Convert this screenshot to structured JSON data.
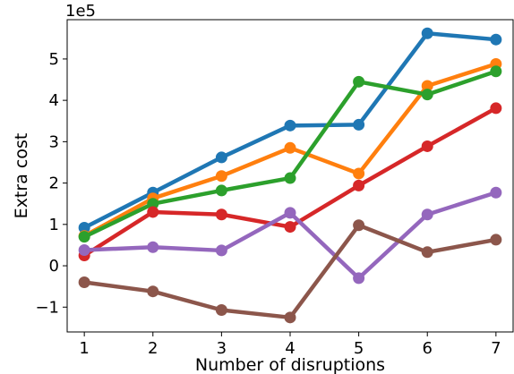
{
  "chart_data": {
    "type": "line",
    "title": "",
    "xlabel": "Number of disruptions",
    "ylabel": "Extra cost",
    "y_offset_label": "1e5",
    "x": [
      1,
      2,
      3,
      4,
      5,
      6,
      7
    ],
    "xticks": [
      "1",
      "2",
      "3",
      "4",
      "5",
      "6",
      "7"
    ],
    "yticks": [
      "−1",
      "0",
      "1",
      "2",
      "3",
      "4",
      "5"
    ],
    "xlim": [
      0.75,
      7.25
    ],
    "ylim": [
      -1.6,
      5.95
    ],
    "grid": false,
    "legend": "none",
    "series": [
      {
        "color": "#1f77b4",
        "values": [
          0.92,
          1.77,
          2.62,
          3.39,
          3.41,
          5.62,
          5.47
        ]
      },
      {
        "color": "#ff7f0e",
        "values": [
          0.72,
          1.63,
          2.17,
          2.85,
          2.23,
          4.35,
          4.88
        ]
      },
      {
        "color": "#2ca02c",
        "values": [
          0.7,
          1.5,
          1.82,
          2.12,
          4.45,
          4.14,
          4.7
        ]
      },
      {
        "color": "#d62728",
        "values": [
          0.25,
          1.3,
          1.24,
          0.94,
          1.94,
          2.89,
          3.81
        ]
      },
      {
        "color": "#9467bd",
        "values": [
          0.38,
          0.45,
          0.37,
          1.28,
          -0.3,
          1.24,
          1.77
        ]
      },
      {
        "color": "#8c564b",
        "values": [
          -0.4,
          -0.62,
          -1.07,
          -1.25,
          0.98,
          0.33,
          0.63
        ]
      }
    ]
  }
}
